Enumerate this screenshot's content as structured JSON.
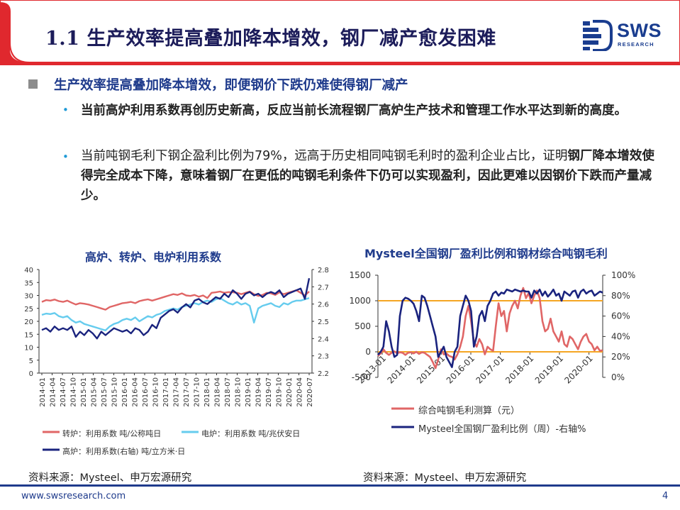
{
  "slide": {
    "title": "1.1 生产效率提高叠加降本增效，钢厂减产愈发困难",
    "logo_text": "SWS",
    "logo_sub": "RESEARCH",
    "headline": "生产效率提高叠加降本增效，即便钢价下跌仍难使得钢厂减产",
    "bullets": [
      {
        "normal_before": "",
        "bold": "当前高炉利用系数再创历史新高，反应当前长流程钢厂高炉生产技术和管理工作水平达到新的高度。",
        "normal_after": ""
      },
      {
        "normal_before": "当前吨钢毛利下钢企盈利比例为79%，远高于历史相同吨钢毛利时的盈利企业占比，证明",
        "bold": "钢厂降本增效使得完全成本下降，意味着钢厂在更低的吨钢毛利条件下仍可以实现盈利，因此更难以因钢价下跌而产量减少。",
        "normal_after": ""
      }
    ],
    "footer_url": "www.swsresearch.com",
    "page_number": "4",
    "colors": {
      "brand": "#1f3b8c",
      "title_red": "#e0282e",
      "bullet": "#1f9ad6"
    }
  },
  "chart_data": [
    {
      "type": "line",
      "title": "高炉、转炉、电炉利用系数",
      "x_tick_labels": [
        "2014-01",
        "2014-04",
        "2014-07",
        "2014-10",
        "2015-01",
        "2015-04",
        "2015-07",
        "2015-10",
        "2016-01",
        "2016-04",
        "2016-07",
        "2016-10",
        "2017-01",
        "2017-04",
        "2017-07",
        "2017-10",
        "2018-01",
        "2018-04",
        "2018-07",
        "2018-10",
        "2019-01",
        "2019-04",
        "2019-07",
        "2019-10",
        "2020-01",
        "2020-04",
        "2020-07"
      ],
      "y_left": {
        "range": [
          0,
          40
        ],
        "ticks": [
          0,
          5,
          10,
          15,
          20,
          25,
          30,
          35,
          40
        ]
      },
      "y_right": {
        "range": [
          2.2,
          2.8
        ],
        "ticks": [
          2.2,
          2.3,
          2.4,
          2.5,
          2.6,
          2.7,
          2.8
        ]
      },
      "series": [
        {
          "name": "转炉：利用系数 吨/公称吨日",
          "axis": "left",
          "color": "#e06666",
          "values": [
            27.5,
            28.2,
            28.0,
            28.4,
            27.8,
            27.5,
            28.0,
            27.2,
            26.5,
            27.0,
            26.8,
            26.5,
            26.0,
            25.5,
            25.0,
            24.5,
            25.5,
            26.0,
            26.5,
            27.0,
            27.2,
            27.5,
            27.0,
            27.8,
            28.2,
            28.5,
            28.0,
            28.5,
            29.0,
            29.5,
            30.0,
            30.5,
            30.2,
            30.8,
            30.0,
            29.8,
            30.2,
            29.5,
            30.0,
            29.0,
            31.0,
            31.2,
            31.5,
            31.0,
            31.3,
            31.2,
            31.0,
            30.5,
            31.0,
            31.5,
            30.5,
            29.8,
            30.2,
            31.0,
            30.8,
            30.2,
            31.2,
            30.5,
            31.0,
            31.5,
            32.0,
            31.0,
            30.0,
            31.5
          ]
        },
        {
          "name": "电炉：利用系数 吨/兆伏安日",
          "axis": "left",
          "color": "#66ccee",
          "values": [
            22.5,
            23.0,
            22.8,
            23.2,
            22.0,
            21.5,
            22.0,
            20.5,
            19.5,
            20.0,
            19.0,
            18.5,
            18.0,
            17.5,
            17.0,
            16.5,
            18.0,
            19.0,
            19.5,
            20.5,
            21.0,
            20.5,
            21.5,
            20.0,
            21.0,
            22.0,
            21.5,
            22.5,
            23.0,
            24.0,
            24.5,
            25.0,
            24.5,
            25.5,
            26.0,
            26.5,
            27.0,
            26.5,
            27.5,
            28.0,
            27.5,
            28.5,
            29.0,
            28.0,
            27.0,
            26.5,
            27.5,
            26.5,
            27.0,
            26.0,
            19.5,
            25.0,
            26.0,
            26.5,
            27.0,
            26.0,
            25.5,
            27.0,
            26.5,
            27.5,
            28.0,
            28.0,
            28.5,
            29.0
          ]
        },
        {
          "name": "高炉：利用系数(右轴) 吨/立方米·日",
          "axis": "right",
          "color": "#1a237e",
          "values": [
            2.45,
            2.46,
            2.44,
            2.47,
            2.45,
            2.46,
            2.45,
            2.47,
            2.41,
            2.44,
            2.42,
            2.45,
            2.43,
            2.4,
            2.44,
            2.42,
            2.44,
            2.46,
            2.45,
            2.44,
            2.45,
            2.43,
            2.46,
            2.45,
            2.42,
            2.44,
            2.48,
            2.46,
            2.52,
            2.54,
            2.56,
            2.57,
            2.55,
            2.58,
            2.6,
            2.58,
            2.62,
            2.63,
            2.61,
            2.6,
            2.62,
            2.64,
            2.63,
            2.66,
            2.64,
            2.68,
            2.66,
            2.63,
            2.66,
            2.67,
            2.65,
            2.66,
            2.64,
            2.66,
            2.67,
            2.66,
            2.68,
            2.64,
            2.66,
            2.67,
            2.68,
            2.69,
            2.63,
            2.75
          ]
        }
      ],
      "source": "资料来源：Mysteel、申万宏源研究"
    },
    {
      "type": "line",
      "title": "Mysteel全国钢厂盈利比例和钢材综合吨钢毛利",
      "x_tick_labels": [
        "2014-01",
        "2015-01",
        "2016-01",
        "2017-01",
        "2018-01",
        "2019-01",
        "2020-01"
      ],
      "x_tick_label_first": "2013-01",
      "y_left": {
        "range": [
          -500,
          1500
        ],
        "ticks": [
          -500,
          0,
          500,
          1000,
          1500
        ]
      },
      "y_right": {
        "range": [
          0,
          100
        ],
        "ticks": [
          "0%",
          "20%",
          "40%",
          "60%",
          "80%",
          "100%"
        ]
      },
      "reference_lines": [
        {
          "axis": "left",
          "value": 1000,
          "color": "#f5a623"
        },
        {
          "axis": "left",
          "value": 0,
          "color": "#f5a623"
        }
      ],
      "series": [
        {
          "name": "综合吨钢毛利测算（元）",
          "axis": "left",
          "color": "#e06666",
          "values": [
            -80,
            -30,
            50,
            -20,
            -60,
            -20,
            10,
            -30,
            -10,
            -20,
            -60,
            -20,
            -10,
            -30,
            0,
            -40,
            -10,
            -20,
            -60,
            -100,
            -200,
            -320,
            -150,
            50,
            -50,
            -30,
            -80,
            -100,
            -150,
            -50,
            100,
            300,
            700,
            900,
            600,
            200,
            100,
            250,
            150,
            -50,
            100,
            50,
            20,
            500,
            950,
            700,
            800,
            400,
            750,
            900,
            1000,
            850,
            1100,
            1250,
            1050,
            1150,
            950,
            1100,
            1200,
            1050,
            600,
            400,
            450,
            650,
            400,
            300,
            200,
            400,
            150,
            100,
            300,
            250,
            150,
            50,
            200,
            300,
            350,
            200,
            150,
            30,
            100,
            20,
            30
          ]
        },
        {
          "name": "Mysteel全国钢厂盈利比例（周）-右轴%",
          "axis": "right",
          "color": "#1a237e",
          "values": [
            22,
            25,
            30,
            55,
            45,
            30,
            20,
            22,
            60,
            75,
            78,
            77,
            75,
            72,
            65,
            55,
            80,
            78,
            70,
            60,
            50,
            40,
            20,
            25,
            30,
            20,
            15,
            10,
            25,
            30,
            60,
            70,
            80,
            75,
            65,
            30,
            40,
            60,
            65,
            55,
            70,
            75,
            82,
            84,
            80,
            83,
            82,
            86,
            85,
            84,
            86,
            85,
            84,
            85,
            84,
            84,
            78,
            85,
            82,
            86,
            80,
            84,
            79,
            82,
            86,
            80,
            82,
            75,
            84,
            82,
            80,
            84,
            85,
            78,
            84,
            86,
            82,
            84,
            85,
            80,
            82,
            84,
            83
          ]
        }
      ],
      "source": "资料来源：Mysteel、申万宏源研究"
    }
  ]
}
